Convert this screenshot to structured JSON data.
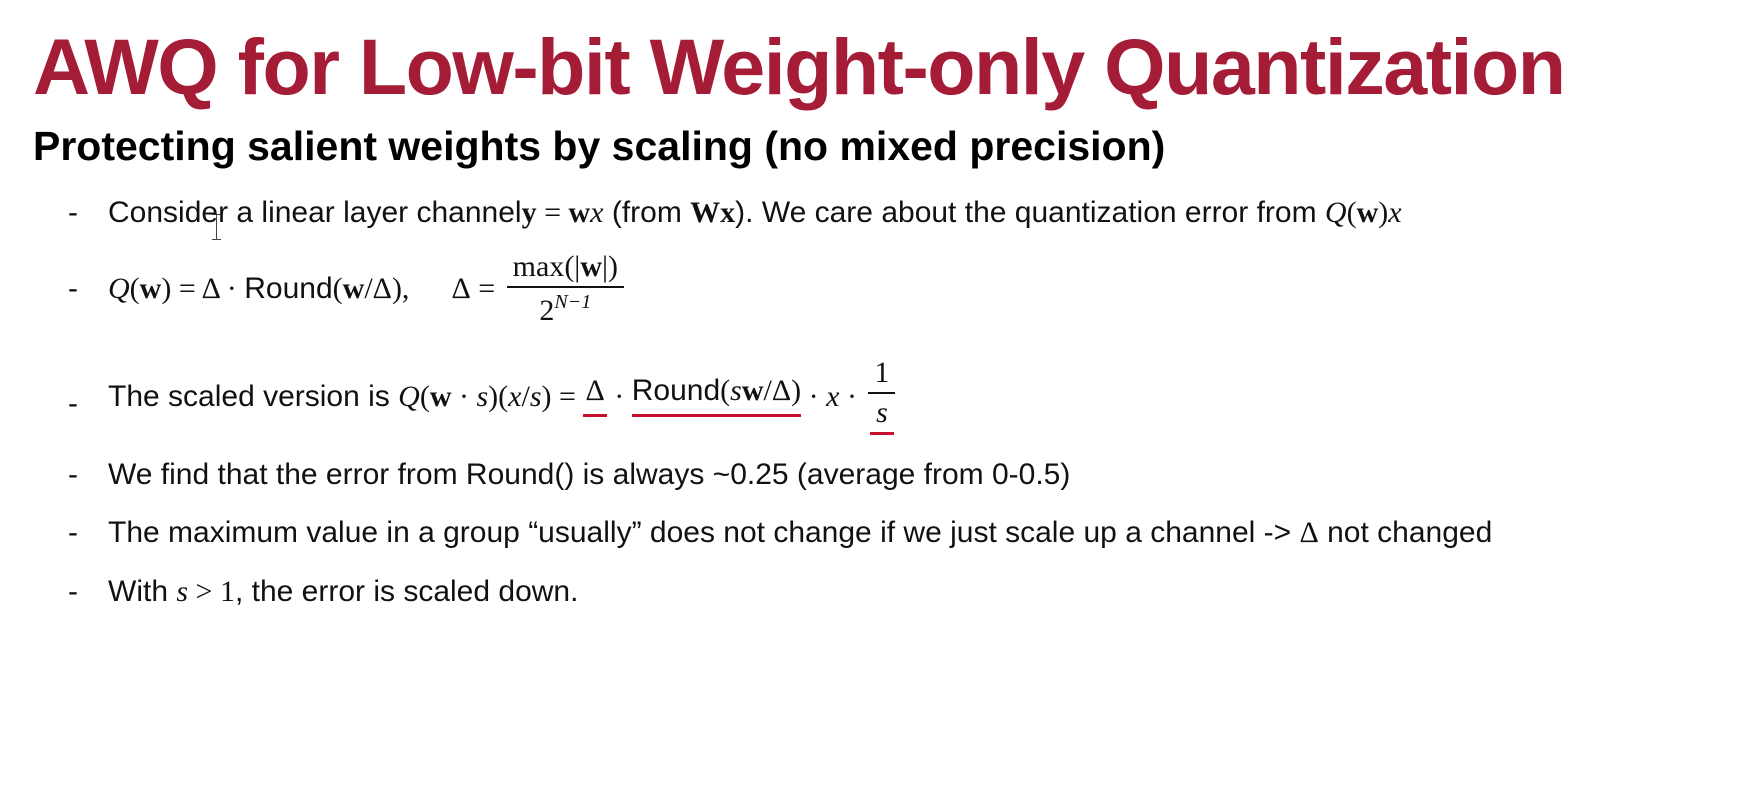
{
  "slide": {
    "title": "AWQ for Low-bit Weight-only Quantization",
    "subtitle": "Protecting salient weights by scaling (no mixed precision)"
  },
  "bullets": {
    "dash": "-",
    "b1": {
      "t1": "Consider a linear layer channel ",
      "m_y": "y",
      "eq": " = ",
      "m_w": "w",
      "m_x": "x",
      "t2": " (from ",
      "m_W": "W",
      "m_x2": "x",
      "t3": "). We care about the quantization error from ",
      "m_Q": "Q",
      "p_open": "(",
      "m_w2": "w",
      "p_close": ")",
      "m_x3": "x"
    },
    "b2": {
      "m_Q": "Q",
      "p_open": "(",
      "m_w": "w",
      "p_eq": ") = Δ · ",
      "round": "Round",
      "p_open2": "(",
      "m_w2": "w",
      "p_div": "/Δ),",
      "delta": "Δ",
      "eq": " = ",
      "num_max": "max",
      "num_open": "(|",
      "num_w": "w",
      "num_close": "|)",
      "den_base": "2",
      "den_exp": "N−1"
    },
    "b3": {
      "t1": "The scaled version is ",
      "m_Q": "Q",
      "p1": "(",
      "m_w": "w",
      "p_dot": " · ",
      "m_s": "s",
      "p2": ")(",
      "m_x": "x",
      "p_slash": "/",
      "m_s2": "s",
      "p3": ") = ",
      "delta": "Δ",
      "dot1": " · ",
      "round": "Round",
      "r_open": "(",
      "r_s": "s",
      "r_w": "w",
      "r_div": "/Δ)",
      "dot2": " · ",
      "m_x2": "x",
      "dot3": " · ",
      "frac_num": "1",
      "frac_den": "s"
    },
    "b4": {
      "text": "We find that the error from Round() is always ~0.25 (average from 0-0.5)"
    },
    "b5": {
      "t1": "The maximum value in a group “usually” does not change if we just scale up a channel -> ",
      "delta": "Δ",
      "t2": " not changed"
    },
    "b6": {
      "t1": "With ",
      "m_s": "s",
      "gt": " > 1",
      "t2": ", the error is scaled down."
    }
  },
  "colors": {
    "title": "#a51c36",
    "underline": "#c8102e",
    "text": "#111111"
  }
}
